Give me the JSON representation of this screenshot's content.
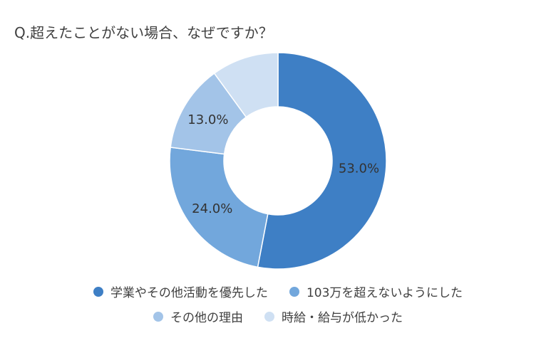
{
  "title": "Q.超えたことがない場合、なぜですか？",
  "chart_data": {
    "type": "pie",
    "donut": true,
    "start_angle_deg": 0,
    "direction": "clockwise",
    "slices": [
      {
        "name": "学業やその他活動を優先した",
        "value": 53.0,
        "label": "53.0%",
        "color": "#3e7fc5"
      },
      {
        "name": "103万を超えないようにした",
        "value": 24.0,
        "label": "24.0%",
        "color": "#72a7dc"
      },
      {
        "name": "その他の理由",
        "value": 13.0,
        "label": "13.0%",
        "color": "#a3c4e8"
      },
      {
        "name": "時給・給与が低かった",
        "value": 10.0,
        "label": "",
        "color": "#cfe0f3"
      }
    ],
    "legend": {
      "rows": [
        [
          0,
          1
        ],
        [
          2,
          3
        ]
      ],
      "placement": "bottom"
    }
  }
}
